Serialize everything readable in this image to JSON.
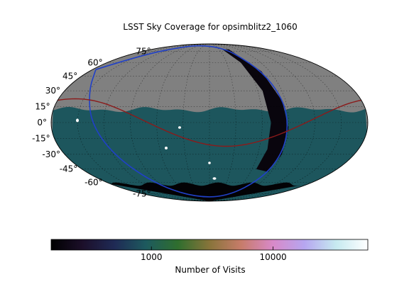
{
  "chart_data": {
    "type": "heatmap",
    "title": "LSST Sky Coverage for opsimblitz2_1060",
    "projection": "mollweide",
    "dec_tick_labels": [
      "75°",
      "60°",
      "45°",
      "30°",
      "15°",
      "0°",
      "-15°",
      "-30°",
      "-45°",
      "-60°",
      "-75°"
    ],
    "colorbar": {
      "label": "Number of Visits",
      "scale": "log",
      "vmin": 150,
      "vmax": 60000,
      "tick_values": [
        1000,
        10000
      ],
      "tick_labels": [
        "1000",
        "10000"
      ],
      "colormap": [
        "#000000",
        "#1c0f2a",
        "#1f2a55",
        "#1d5a5e",
        "#2f6e2e",
        "#88743a",
        "#c77c6a",
        "#d889c8",
        "#b6a6f0",
        "#c6eaf0",
        "#ffffff"
      ]
    },
    "coverage": {
      "covered_dec_range": [
        -90,
        12
      ],
      "dominant_visits": 860,
      "deep_south_visits": 160,
      "galactic_plane_visits": 180,
      "uncovered_color": "#808080"
    },
    "curves": [
      {
        "kind": "ecliptic",
        "color": "#8b1a1a"
      },
      {
        "kind": "galactic plane",
        "color": "#2040c8"
      }
    ]
  }
}
